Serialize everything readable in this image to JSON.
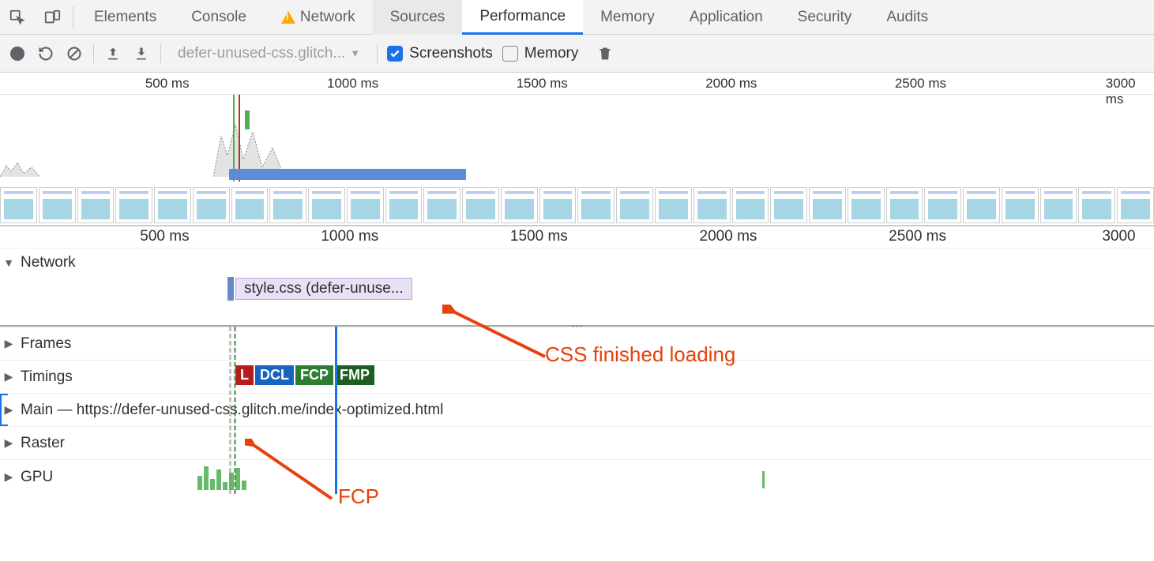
{
  "tabs": {
    "elements": "Elements",
    "console": "Console",
    "network": "Network",
    "sources": "Sources",
    "performance": "Performance",
    "memory": "Memory",
    "application": "Application",
    "security": "Security",
    "audits": "Audits"
  },
  "toolbar": {
    "dropdown_label": "defer-unused-css.glitch...",
    "screenshots_label": "Screenshots",
    "memory_label": "Memory",
    "screenshots_checked": true,
    "memory_checked": false
  },
  "ruler": {
    "ticks": [
      "500 ms",
      "1000 ms",
      "1500 ms",
      "2000 ms",
      "2500 ms",
      "3000 ms"
    ],
    "positions_pct": [
      16.4,
      32.8,
      49.2,
      65.6,
      82.0,
      98.4
    ]
  },
  "network": {
    "label": "Network",
    "css_file_label": "style.css (defer-unuse..."
  },
  "panels": {
    "frames": "Frames",
    "timings": "Timings",
    "main_prefix": "Main — ",
    "main_url": "https://defer-unused-css.glitch.me/index-optimized.html",
    "raster": "Raster",
    "gpu": "GPU"
  },
  "timing_badges": {
    "L": "L",
    "DCL": "DCL",
    "FCP": "FCP",
    "FMP": "FMP"
  },
  "annotations": {
    "css_finished": "CSS finished loading",
    "fcp": "FCP",
    "color": "#e8410b"
  },
  "colors": {
    "accent": "#1a73e8",
    "warn": "#f9ab00",
    "badge_l": "#b71c1c",
    "badge_dcl": "#1565c0",
    "badge_fcp": "#2e7d32",
    "badge_fmp": "#1b5e20",
    "filmstrip_body": "#a6d5e4",
    "network_bar_fill": "#e8e0f5",
    "network_bar_border": "#b9a9d9",
    "cpu_blue": "#5b8dd6",
    "gpu_green": "#66bb6a"
  },
  "gpu_bar_heights": [
    18,
    30,
    14,
    26,
    10,
    22,
    28,
    12
  ]
}
